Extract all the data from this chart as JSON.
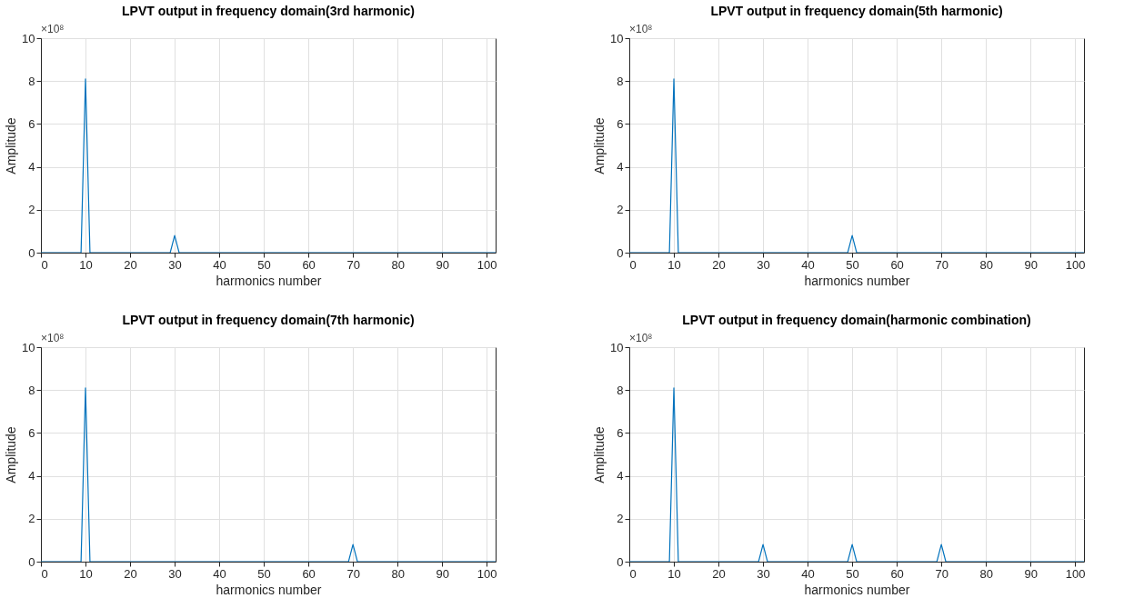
{
  "chart_data": [
    {
      "type": "line",
      "title": "LPVT output in frequency domain(3rd harmonic)",
      "xlabel": "harmonics number",
      "ylabel": "Amplitude",
      "annotations": [
        "×10⁸"
      ],
      "xlim": [
        0,
        102
      ],
      "xticks": [
        0,
        10,
        20,
        30,
        40,
        50,
        60,
        70,
        80,
        90,
        100
      ],
      "ylim": [
        0,
        10
      ],
      "yticks": [
        0,
        2,
        4,
        6,
        8,
        10
      ],
      "grid": true,
      "marker": "none",
      "line_style": "solid",
      "series": [
        {
          "color": "#0072bd",
          "x": [
            0,
            9,
            10,
            11,
            29,
            30,
            31,
            102
          ],
          "values": [
            0,
            0,
            8.1,
            0,
            0,
            0.8,
            0,
            0
          ]
        }
      ]
    },
    {
      "type": "line",
      "title": "LPVT output in frequency domain(5th harmonic)",
      "xlabel": "harmonics number",
      "ylabel": "Amplitude",
      "annotations": [
        "×10⁸"
      ],
      "xlim": [
        0,
        102
      ],
      "xticks": [
        0,
        10,
        20,
        30,
        40,
        50,
        60,
        70,
        80,
        90,
        100
      ],
      "ylim": [
        0,
        10
      ],
      "yticks": [
        0,
        2,
        4,
        6,
        8,
        10
      ],
      "grid": true,
      "marker": "none",
      "line_style": "solid",
      "series": [
        {
          "color": "#0072bd",
          "x": [
            0,
            9,
            10,
            11,
            49,
            50,
            51,
            102
          ],
          "values": [
            0,
            0,
            8.1,
            0,
            0,
            0.8,
            0,
            0
          ]
        }
      ]
    },
    {
      "type": "line",
      "title": "LPVT output in frequency domain(7th harmonic)",
      "xlabel": "harmonics number",
      "ylabel": "Amplitude",
      "annotations": [
        "×10⁸"
      ],
      "xlim": [
        0,
        102
      ],
      "xticks": [
        0,
        10,
        20,
        30,
        40,
        50,
        60,
        70,
        80,
        90,
        100
      ],
      "ylim": [
        0,
        10
      ],
      "yticks": [
        0,
        2,
        4,
        6,
        8,
        10
      ],
      "grid": true,
      "marker": "none",
      "line_style": "solid",
      "series": [
        {
          "color": "#0072bd",
          "x": [
            0,
            9,
            10,
            11,
            69,
            70,
            71,
            102
          ],
          "values": [
            0,
            0,
            8.1,
            0,
            0,
            0.8,
            0,
            0
          ]
        }
      ]
    },
    {
      "type": "line",
      "title": "LPVT output in frequency domain(harmonic combination)",
      "xlabel": "harmonics number",
      "ylabel": "Amplitude",
      "annotations": [
        "×10⁸"
      ],
      "xlim": [
        0,
        102
      ],
      "xticks": [
        0,
        10,
        20,
        30,
        40,
        50,
        60,
        70,
        80,
        90,
        100
      ],
      "ylim": [
        0,
        10
      ],
      "yticks": [
        0,
        2,
        4,
        6,
        8,
        10
      ],
      "grid": true,
      "marker": "none",
      "line_style": "solid",
      "series": [
        {
          "color": "#0072bd",
          "x": [
            0,
            9,
            10,
            11,
            29,
            30,
            31,
            49,
            50,
            51,
            69,
            70,
            71,
            102
          ],
          "values": [
            0,
            0,
            8.1,
            0,
            0,
            0.8,
            0,
            0,
            0.8,
            0,
            0,
            0.8,
            0,
            0
          ]
        }
      ]
    }
  ]
}
